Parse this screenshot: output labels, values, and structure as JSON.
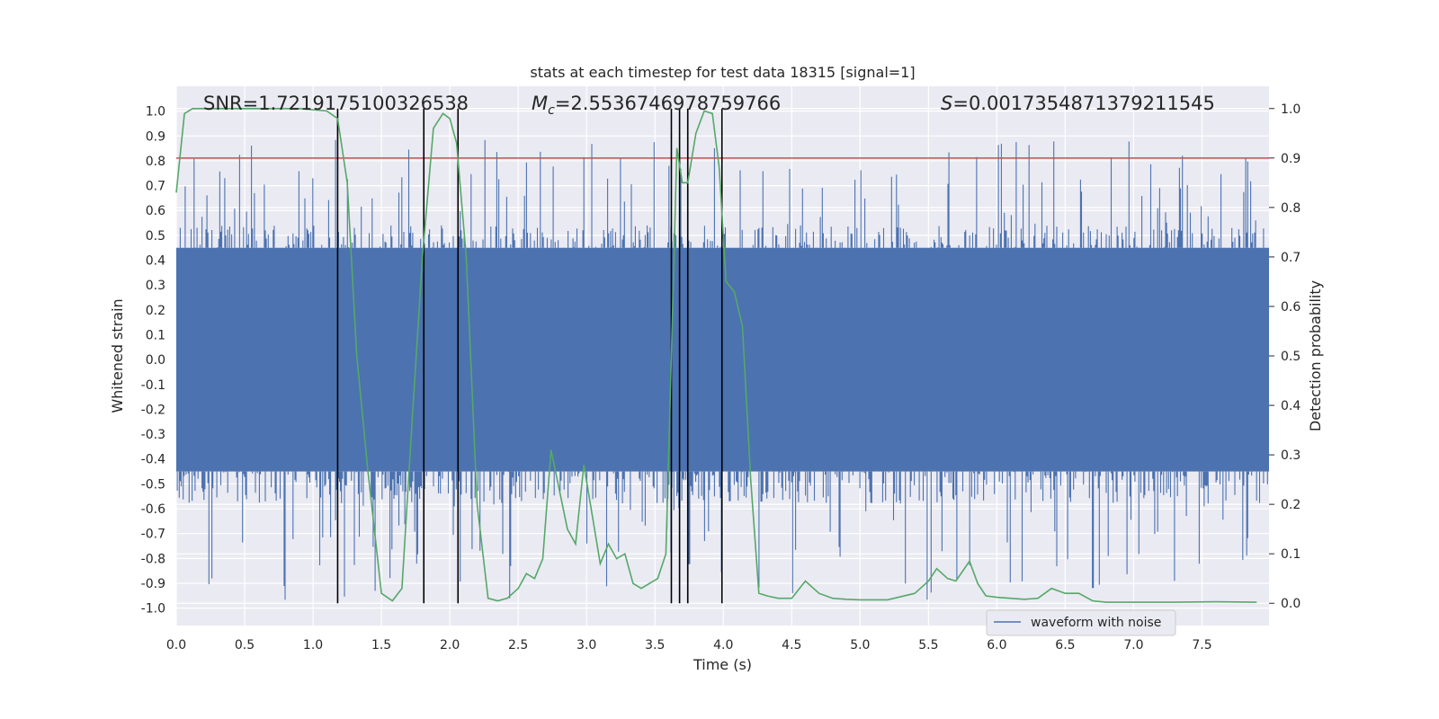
{
  "chart_data": {
    "type": "line",
    "title": "stats at each timestep for test data 18315 [signal=1]",
    "xlabel": "Time (s)",
    "ylabel_left": "Whitened strain",
    "ylabel_right": "Detection probability",
    "xlim": [
      0,
      7.99
    ],
    "ylim_left": [
      -1.07,
      1.1
    ],
    "ylim_right": [
      -0.045,
      1.045
    ],
    "xticks": [
      "0.0",
      "0.5",
      "1.0",
      "1.5",
      "2.0",
      "2.5",
      "3.0",
      "3.5",
      "4.0",
      "4.5",
      "5.0",
      "5.5",
      "6.0",
      "6.5",
      "7.0",
      "7.5"
    ],
    "yticks_left": [
      "1.0",
      "0.9",
      "0.8",
      "0.7",
      "0.6",
      "0.5",
      "0.4",
      "0.3",
      "0.2",
      "0.1",
      "0.0",
      "-0.1",
      "-0.2",
      "-0.3",
      "-0.4",
      "-0.5",
      "-0.6",
      "-0.7",
      "-0.8",
      "-0.9",
      "-1.0"
    ],
    "yticks_right": [
      "1.0",
      "0.9",
      "0.8",
      "0.7",
      "0.6",
      "0.5",
      "0.4",
      "0.3",
      "0.2",
      "0.1",
      "0.0"
    ],
    "annotations": {
      "snr": "SNR=1.7219175100326538",
      "mc_symbol": "M",
      "mc_subscript": "c",
      "mc_value": "=2.5536746978759766",
      "s_symbol": "S",
      "s_value": "=0.0017354871379211545"
    },
    "threshold": 0.9,
    "threshold_color": "#c44e52",
    "waveform_color": "#4c72b0",
    "probability_color": "#55a868",
    "event_line_color": "#000000",
    "event_times": [
      1.18,
      1.81,
      2.06,
      3.62,
      3.68,
      3.74,
      3.99
    ],
    "waveform_envelope": {
      "core_amplitude": 0.45,
      "spike_max": 0.97
    },
    "probability_series": {
      "name": "detection probability",
      "x": [
        0.0,
        0.06,
        0.12,
        0.3,
        0.6,
        0.9,
        1.1,
        1.18,
        1.25,
        1.32,
        1.4,
        1.5,
        1.58,
        1.65,
        1.72,
        1.8,
        1.88,
        1.95,
        2.0,
        2.05,
        2.12,
        2.2,
        2.28,
        2.35,
        2.42,
        2.5,
        2.56,
        2.62,
        2.68,
        2.74,
        2.8,
        2.86,
        2.92,
        2.98,
        3.04,
        3.1,
        3.16,
        3.22,
        3.28,
        3.34,
        3.4,
        3.46,
        3.52,
        3.58,
        3.62,
        3.66,
        3.7,
        3.74,
        3.8,
        3.86,
        3.92,
        3.97,
        4.02,
        4.08,
        4.14,
        4.2,
        4.26,
        4.32,
        4.4,
        4.5,
        4.6,
        4.7,
        4.8,
        4.9,
        5.0,
        5.2,
        5.4,
        5.5,
        5.56,
        5.64,
        5.7,
        5.8,
        5.86,
        5.92,
        6.0,
        6.1,
        6.2,
        6.3,
        6.4,
        6.5,
        6.6,
        6.7,
        6.8,
        7.0,
        7.3,
        7.6,
        7.9
      ],
      "y": [
        0.83,
        0.99,
        1.0,
        1.0,
        1.0,
        1.0,
        0.995,
        0.98,
        0.85,
        0.5,
        0.27,
        0.02,
        0.005,
        0.03,
        0.35,
        0.7,
        0.96,
        0.99,
        0.98,
        0.93,
        0.7,
        0.2,
        0.01,
        0.005,
        0.01,
        0.03,
        0.06,
        0.05,
        0.09,
        0.31,
        0.23,
        0.15,
        0.12,
        0.28,
        0.18,
        0.08,
        0.12,
        0.09,
        0.1,
        0.04,
        0.03,
        0.04,
        0.05,
        0.1,
        0.5,
        0.92,
        0.85,
        0.85,
        0.95,
        0.995,
        0.99,
        0.88,
        0.65,
        0.63,
        0.56,
        0.25,
        0.02,
        0.015,
        0.01,
        0.01,
        0.045,
        0.02,
        0.01,
        0.008,
        0.007,
        0.007,
        0.02,
        0.045,
        0.07,
        0.05,
        0.045,
        0.085,
        0.04,
        0.015,
        0.012,
        0.01,
        0.008,
        0.01,
        0.03,
        0.02,
        0.02,
        0.005,
        0.002,
        0.002,
        0.002,
        0.003,
        0.002
      ]
    },
    "legend": {
      "label": "waveform with noise",
      "location": "lower right"
    }
  }
}
